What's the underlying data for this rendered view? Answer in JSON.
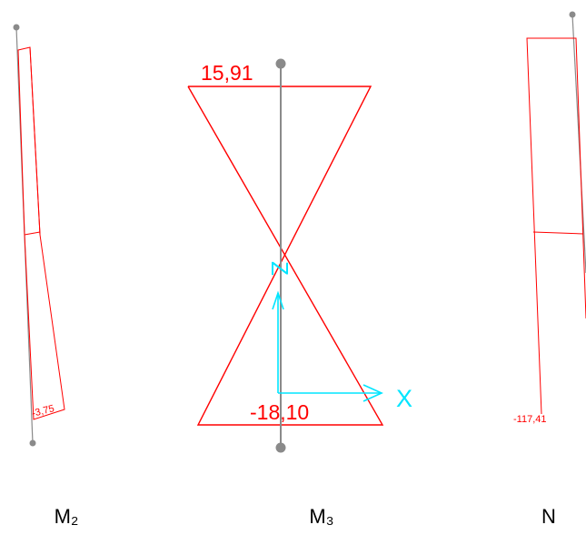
{
  "colors": {
    "diagram": "#ff0000",
    "member": "#8a8a8a",
    "axis": "#00e5ff",
    "caption": "#000000",
    "background": "#ffffff"
  },
  "panels": {
    "m2": {
      "caption": "M₂",
      "value_label": "-3,75"
    },
    "m3": {
      "caption": "M₃",
      "top_label": "15,91",
      "bottom_label": "-18,10"
    },
    "n": {
      "caption": "N",
      "value_label": "-117,41"
    }
  },
  "axes": {
    "x_label": "X",
    "z_label": "Z"
  }
}
